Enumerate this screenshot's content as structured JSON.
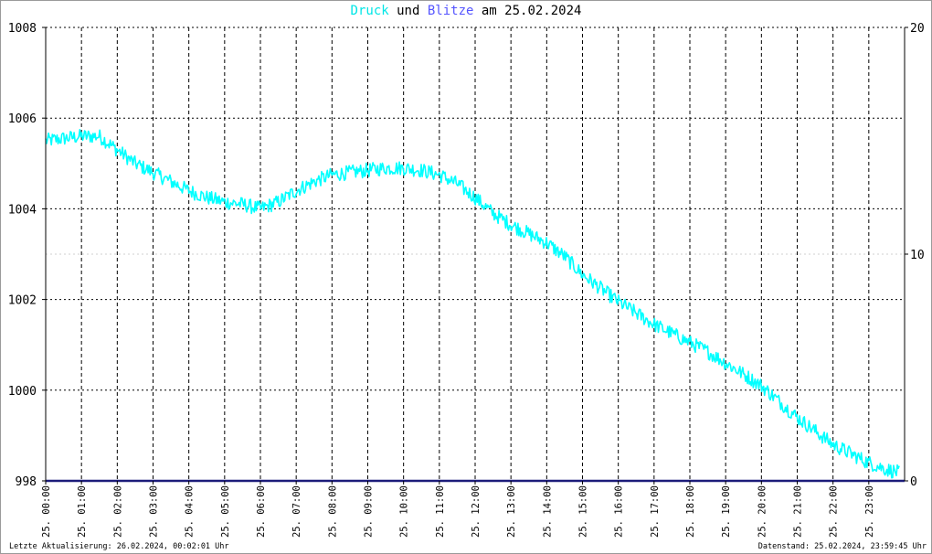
{
  "title": {
    "part1": "Druck",
    "part2": "und",
    "part3": "Blitze",
    "part4": "am 25.02.2024"
  },
  "footer": {
    "left": "Letzte Aktualisierung: 26.02.2024, 00:02:01 Uhr",
    "right": "Datenstand: 25.02.2024, 23:59:45 Uhr"
  },
  "colors": {
    "pressure": "#00ffff",
    "lightning": "#1c1c7a",
    "grid": "#000000",
    "title_druck": "#00e6e6",
    "title_blitze": "#5555ff"
  },
  "chart_data": {
    "type": "line",
    "title": "Druck und Blitze am 25.02.2024",
    "x_tick_labels": [
      "25. 00:00",
      "25. 01:00",
      "25. 02:00",
      "25. 03:00",
      "25. 04:00",
      "25. 05:00",
      "25. 06:00",
      "25. 07:00",
      "25. 08:00",
      "25. 09:00",
      "25. 10:00",
      "25. 11:00",
      "25. 12:00",
      "25. 13:00",
      "25. 14:00",
      "25. 15:00",
      "25. 16:00",
      "25. 17:00",
      "25. 18:00",
      "25. 19:00",
      "25. 20:00",
      "25. 21:00",
      "25. 22:00",
      "25. 23:00"
    ],
    "y_left": {
      "ticks": [
        998,
        1000,
        1002,
        1004,
        1006,
        1008
      ],
      "ylim": [
        998,
        1008
      ]
    },
    "y_right": {
      "ticks": [
        0,
        10,
        20
      ],
      "ylim": [
        0,
        20
      ]
    },
    "xlim_hours": [
      0,
      24
    ],
    "grid": true,
    "series": [
      {
        "name": "Druck",
        "axis": "left",
        "x_hours": [
          0,
          0.5,
          1,
          1.5,
          2,
          2.5,
          3,
          3.5,
          4,
          4.5,
          5,
          5.5,
          6,
          6.5,
          7,
          7.5,
          8,
          8.5,
          9,
          9.5,
          10,
          10.5,
          11,
          11.5,
          12,
          12.5,
          13,
          13.5,
          14,
          14.5,
          15,
          15.5,
          16,
          16.5,
          17,
          17.5,
          18,
          18.5,
          19,
          19.5,
          20,
          20.5,
          21,
          21.5,
          22,
          22.5,
          23,
          23.5,
          24
        ],
        "values": [
          1005.5,
          1005.55,
          1005.6,
          1005.6,
          1005.3,
          1005.0,
          1004.8,
          1004.6,
          1004.4,
          1004.25,
          1004.15,
          1004.1,
          1004.0,
          1004.15,
          1004.4,
          1004.6,
          1004.75,
          1004.8,
          1004.85,
          1004.9,
          1004.9,
          1004.85,
          1004.75,
          1004.55,
          1004.25,
          1003.9,
          1003.65,
          1003.45,
          1003.25,
          1002.95,
          1002.55,
          1002.25,
          1001.95,
          1001.7,
          1001.45,
          1001.25,
          1001.05,
          1000.85,
          1000.6,
          1000.35,
          1000.1,
          999.75,
          999.4,
          999.1,
          998.8,
          998.6,
          998.4,
          998.25,
          998.15
        ]
      },
      {
        "name": "Blitze",
        "axis": "right",
        "x_hours": [
          0,
          24
        ],
        "values": [
          0,
          0
        ]
      }
    ]
  }
}
